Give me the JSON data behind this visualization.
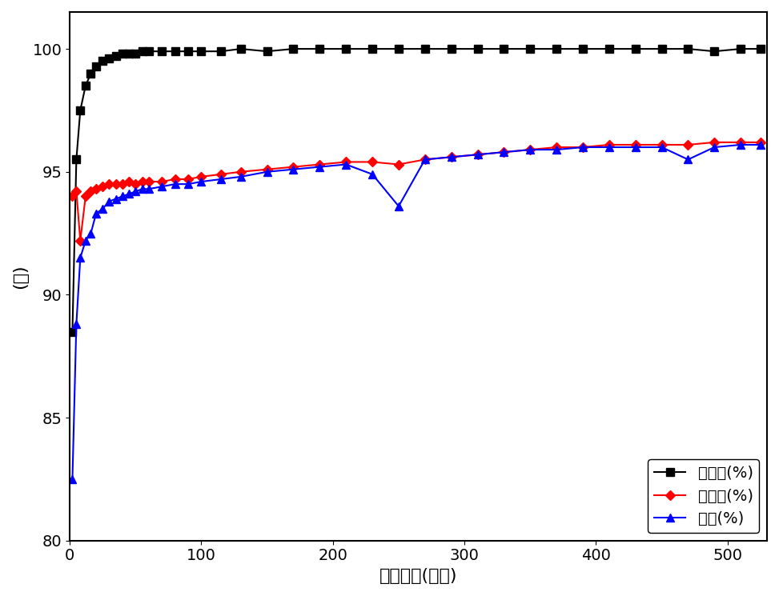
{
  "title": "",
  "xlabel": "反应时长(小时)",
  "ylabel": "(％)",
  "xlim": [
    0,
    530
  ],
  "ylim": [
    80,
    101.5
  ],
  "yticks": [
    80,
    85,
    90,
    95,
    100
  ],
  "xticks": [
    0,
    100,
    200,
    300,
    400,
    500
  ],
  "background_color": "#ffffff",
  "conversion_x": [
    2,
    5,
    8,
    12,
    16,
    20,
    25,
    30,
    35,
    40,
    45,
    50,
    55,
    60,
    70,
    80,
    90,
    100,
    115,
    130,
    150,
    170,
    190,
    210,
    230,
    250,
    270,
    290,
    310,
    330,
    350,
    370,
    390,
    410,
    430,
    450,
    470,
    490,
    510,
    525
  ],
  "conversion_y": [
    88.5,
    95.5,
    97.5,
    98.5,
    99.0,
    99.3,
    99.5,
    99.6,
    99.7,
    99.8,
    99.8,
    99.8,
    99.9,
    99.9,
    99.9,
    99.9,
    99.9,
    99.9,
    99.9,
    100.0,
    99.9,
    100.0,
    100.0,
    100.0,
    100.0,
    100.0,
    100.0,
    100.0,
    100.0,
    100.0,
    100.0,
    100.0,
    100.0,
    100.0,
    100.0,
    100.0,
    100.0,
    99.9,
    100.0,
    100.0
  ],
  "selectivity_x": [
    2,
    5,
    8,
    12,
    16,
    20,
    25,
    30,
    35,
    40,
    45,
    50,
    55,
    60,
    70,
    80,
    90,
    100,
    115,
    130,
    150,
    170,
    190,
    210,
    230,
    250,
    270,
    290,
    310,
    330,
    350,
    370,
    390,
    410,
    430,
    450,
    470,
    490,
    510,
    525
  ],
  "selectivity_y": [
    94.0,
    94.2,
    92.2,
    94.0,
    94.2,
    94.3,
    94.4,
    94.5,
    94.5,
    94.5,
    94.6,
    94.5,
    94.6,
    94.6,
    94.6,
    94.7,
    94.7,
    94.8,
    94.9,
    95.0,
    95.1,
    95.2,
    95.3,
    95.4,
    95.4,
    95.3,
    95.5,
    95.6,
    95.7,
    95.8,
    95.9,
    96.0,
    96.0,
    96.1,
    96.1,
    96.1,
    96.1,
    96.2,
    96.2,
    96.2
  ],
  "yield_x": [
    2,
    5,
    8,
    12,
    16,
    20,
    25,
    30,
    35,
    40,
    45,
    50,
    55,
    60,
    70,
    80,
    90,
    100,
    115,
    130,
    150,
    170,
    190,
    210,
    230,
    250,
    270,
    290,
    310,
    330,
    350,
    370,
    390,
    410,
    430,
    450,
    470,
    490,
    510,
    525
  ],
  "yield_y": [
    82.5,
    88.8,
    91.5,
    92.2,
    92.5,
    93.3,
    93.5,
    93.8,
    93.9,
    94.0,
    94.1,
    94.2,
    94.3,
    94.3,
    94.4,
    94.5,
    94.5,
    94.6,
    94.7,
    94.8,
    95.0,
    95.1,
    95.2,
    95.3,
    94.9,
    93.6,
    95.5,
    95.6,
    95.7,
    95.8,
    95.9,
    95.9,
    96.0,
    96.0,
    96.0,
    96.0,
    95.5,
    96.0,
    96.1,
    96.1
  ],
  "conversion_color": "#000000",
  "selectivity_color": "#ff0000",
  "yield_color": "#0000ff",
  "legend_labels": [
    "转化率(%)",
    "选择性(%)",
    "收率(%)"
  ],
  "fontsize_label": 16,
  "fontsize_tick": 14,
  "fontsize_legend": 14,
  "linewidth": 1.5,
  "markersize": 7
}
